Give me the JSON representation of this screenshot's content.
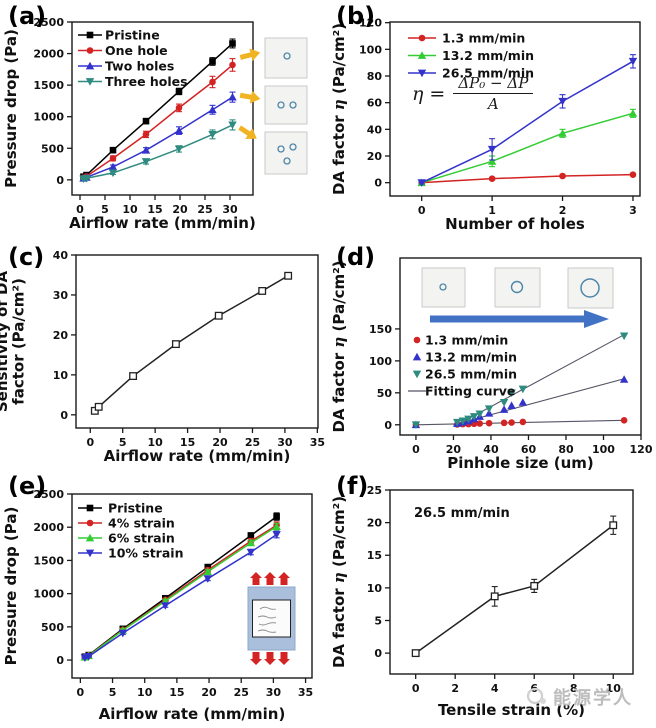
{
  "watermark": {
    "text": "能源学人"
  },
  "panels": {
    "a": {
      "label": "(a)",
      "chart_data": {
        "type": "line",
        "x": [
          0.7,
          1.3,
          6.6,
          13.2,
          19.8,
          26.5,
          30.5
        ],
        "series": [
          {
            "name": "Pristine",
            "color": "#000000",
            "marker": "square",
            "values": [
              50,
              75,
              470,
              930,
              1400,
              1875,
              2160
            ],
            "yerr": [
              15,
              20,
              30,
              40,
              50,
              60,
              70
            ]
          },
          {
            "name": "One hole",
            "color": "#d42323",
            "marker": "circle",
            "values": [
              35,
              55,
              340,
              720,
              1140,
              1550,
              1820
            ],
            "yerr": [
              12,
              18,
              40,
              50,
              60,
              90,
              100
            ]
          },
          {
            "name": "Two holes",
            "color": "#3333cc",
            "marker": "triangle-up",
            "values": [
              25,
              40,
              205,
              470,
              780,
              1110,
              1310
            ],
            "yerr": [
              10,
              15,
              30,
              40,
              60,
              70,
              80
            ]
          },
          {
            "name": "Three holes",
            "color": "#2e8b7f",
            "marker": "triangle-down",
            "values": [
              15,
              25,
              110,
              290,
              490,
              720,
              870
            ],
            "yerr": [
              8,
              10,
              25,
              40,
              50,
              70,
              80
            ]
          }
        ],
        "xlabel": "Airflow rate (mm/min)",
        "ylabel": "Pressure drop (Pa)",
        "xlim": [
          -1.6,
          34.6
        ],
        "ylim": [
          -240,
          2500
        ],
        "xticks": [
          0,
          5,
          10,
          15,
          20,
          25,
          30
        ],
        "yticks": [
          0,
          500,
          1000,
          1500,
          2000,
          2500
        ],
        "legend_position": "top-left"
      }
    },
    "b": {
      "label": "(b)",
      "formula": {
        "lhs": "η =",
        "numerator": "ΔP₀ − ΔP",
        "denominator": "A"
      },
      "chart_data": {
        "type": "line",
        "x": [
          0,
          1,
          2,
          3
        ],
        "series": [
          {
            "name": "1.3 mm/min",
            "color": "#d42323",
            "marker": "circle",
            "values": [
              0,
              3,
              5,
              6
            ],
            "yerr": [
              1,
              1,
              1,
              1
            ]
          },
          {
            "name": "13.2 mm/min",
            "color": "#33cc33",
            "marker": "triangle-up",
            "values": [
              0,
              16,
              37,
              52
            ],
            "yerr": [
              1,
              4,
              3,
              3
            ]
          },
          {
            "name": "26.5 mm/min",
            "color": "#3333cc",
            "marker": "triangle-down",
            "values": [
              0,
              25,
              61,
              91
            ],
            "yerr": [
              1,
              8,
              5,
              5
            ]
          }
        ],
        "xlabel": "Number of holes",
        "ylabel": "DA factor η (Pa/cm²)",
        "xlim": [
          -0.45,
          3.1
        ],
        "ylim": [
          -10,
          120.5
        ],
        "xticks": [
          0,
          1,
          2,
          3
        ],
        "yticks": [
          0,
          20,
          40,
          60,
          80,
          100,
          120
        ],
        "legend_position": "top-left"
      }
    },
    "c": {
      "label": "(c)",
      "chart_data": {
        "type": "line",
        "x": [
          0.7,
          1.3,
          6.6,
          13.2,
          19.8,
          26.5,
          30.5
        ],
        "series": [
          {
            "name": "Sensitivity",
            "color": "#222222",
            "marker": "square-open",
            "values": [
              1,
              2,
              9.7,
              17.7,
              24.8,
              31,
              34.8
            ]
          }
        ],
        "xlabel": "Airflow rate (mm/min)",
        "ylabel": [
          "Sensitivity of DA",
          "factor (Pa/cm²)"
        ],
        "xlim": [
          -2.2,
          35.1
        ],
        "ylim": [
          -3.3,
          40
        ],
        "xticks": [
          0,
          5,
          10,
          15,
          20,
          25,
          30,
          35
        ],
        "yticks": [
          0,
          10,
          20,
          30,
          40
        ]
      }
    },
    "d": {
      "label": "(d)",
      "chart_data": {
        "type": "scatter",
        "x": [
          0,
          22,
          25,
          28,
          31,
          34,
          39,
          47,
          51,
          57,
          111
        ],
        "series": [
          {
            "name": "1.3 mm/min",
            "color": "#d42323",
            "marker": "circle",
            "line": false,
            "values": [
              0,
              0.5,
              1,
              1,
              1.5,
              2,
              2.5,
              3,
              3.5,
              4.5,
              7
            ]
          },
          {
            "name": "13.2 mm/min",
            "color": "#3333cc",
            "marker": "triangle-up",
            "line": false,
            "values": [
              0,
              2,
              4,
              6,
              9,
              13,
              18,
              24,
              30,
              35,
              71
            ]
          },
          {
            "name": "26.5 mm/min",
            "color": "#2e8b7f",
            "marker": "triangle-down",
            "line": false,
            "values": [
              0,
              4,
              6,
              9,
              13,
              17,
              25,
              35,
              50,
              56,
              139
            ]
          }
        ],
        "fits": [
          {
            "x": [
              0,
              111
            ],
            "y": [
              0,
              7
            ]
          },
          {
            "x": [
              20,
              111
            ],
            "y": [
              0,
              72
            ]
          },
          {
            "x": [
              22,
              111
            ],
            "y": [
              0,
              141
            ]
          }
        ],
        "legend_extra": "Fitting curve",
        "xlabel": "Pinhole size (um)",
        "ylabel": "DA factor η (Pa/cm²)",
        "xlim": [
          -8.5,
          120
        ],
        "ylim": [
          -16,
          261
        ],
        "xticks": [
          0,
          20,
          40,
          60,
          80,
          100,
          120
        ],
        "yticks": [
          0,
          50,
          100,
          150
        ],
        "legend_position": "middle-left"
      }
    },
    "e": {
      "label": "(e)",
      "chart_data": {
        "type": "line",
        "x": [
          0.7,
          1.3,
          6.6,
          13.2,
          19.8,
          26.5,
          30.5
        ],
        "series": [
          {
            "name": "Pristine",
            "color": "#000000",
            "marker": "square",
            "values": [
              50,
              75,
              470,
              930,
              1400,
              1875,
              2160
            ],
            "yerr": [
              10,
              12,
              20,
              25,
              30,
              40,
              55
            ]
          },
          {
            "name": "4% strain",
            "color": "#d42323",
            "marker": "circle",
            "values": [
              45,
              70,
              455,
              905,
              1355,
              1790,
              2030
            ],
            "yerr": [
              10,
              12,
              20,
              25,
              30,
              40,
              50
            ]
          },
          {
            "name": "6% strain",
            "color": "#33cc33",
            "marker": "triangle-up",
            "values": [
              42,
              65,
              448,
              890,
              1330,
              1765,
              2010
            ],
            "yerr": [
              10,
              12,
              20,
              25,
              30,
              40,
              50
            ]
          },
          {
            "name": "10% strain",
            "color": "#3333cc",
            "marker": "triangle-down",
            "values": [
              35,
              55,
              405,
              820,
              1225,
              1625,
              1890
            ],
            "yerr": [
              10,
              12,
              20,
              25,
              30,
              40,
              50
            ]
          }
        ],
        "xlabel": "Airflow rate (mm/min)",
        "ylabel": "Pressure drop (Pa)",
        "xlim": [
          -1.3,
          36
        ],
        "ylim": [
          -270,
          2500
        ],
        "xticks": [
          0,
          5,
          10,
          15,
          20,
          25,
          30,
          35
        ],
        "yticks": [
          0,
          500,
          1000,
          1500,
          2000,
          2500
        ],
        "legend_position": "top-left"
      }
    },
    "f": {
      "label": "(f)",
      "annotation": "26.5 mm/min",
      "chart_data": {
        "type": "line",
        "x": [
          0,
          4,
          6,
          10
        ],
        "series": [
          {
            "name": "26.5 mm/min",
            "color": "#222222",
            "marker": "square-open",
            "values": [
              0,
              8.7,
              10.3,
              19.6
            ],
            "yerr": [
              0.3,
              1.5,
              1.0,
              1.4
            ]
          }
        ],
        "xlabel": "Tensile strain (%)",
        "ylabel": "DA factor η (Pa/cm²)",
        "xlim": [
          -1.3,
          11
        ],
        "ylim": [
          -3.2,
          25
        ],
        "xticks": [
          0,
          2,
          4,
          6,
          8,
          10
        ],
        "yticks": [
          0,
          5,
          10,
          15,
          20,
          25
        ]
      }
    }
  }
}
